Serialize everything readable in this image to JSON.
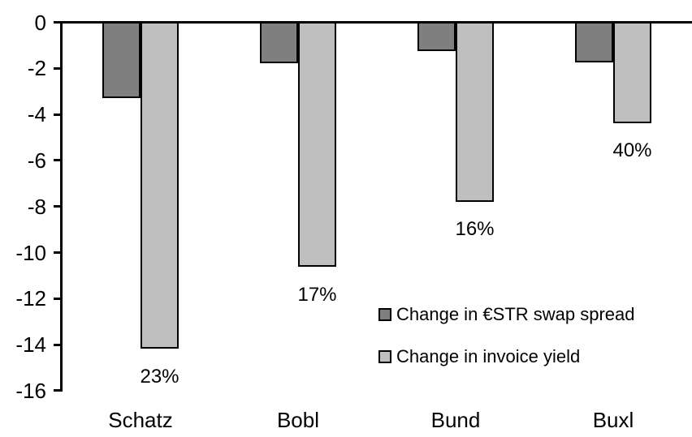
{
  "chart_data": {
    "type": "bar",
    "orientation": "vertical",
    "title": "",
    "xlabel": "",
    "ylabel": "",
    "categories": [
      "Schatz",
      "Bobl",
      "Bund",
      "Buxl"
    ],
    "series": [
      {
        "name": "Change in €STR swap spread",
        "color": "#7F7F7F",
        "values": [
          -3.3,
          -1.8,
          -1.25,
          -1.75
        ]
      },
      {
        "name": "Change in invoice yield",
        "color": "#BFBFBF",
        "values": [
          -14.2,
          -10.65,
          -7.8,
          -4.4
        ]
      }
    ],
    "bar_labels": {
      "series": "Change in invoice yield",
      "values": [
        "23%",
        "17%",
        "16%",
        "40%"
      ]
    },
    "ylim": [
      -16,
      0
    ],
    "yticks": [
      0,
      -2,
      -4,
      -6,
      -8,
      -10,
      -12,
      -14,
      -16
    ],
    "grid": false,
    "legend_position": "inside-right-middle",
    "bar_border_color": "#000000",
    "axis_color": "#000000",
    "text_color": "#000000",
    "background_color": "#FFFFFF"
  }
}
